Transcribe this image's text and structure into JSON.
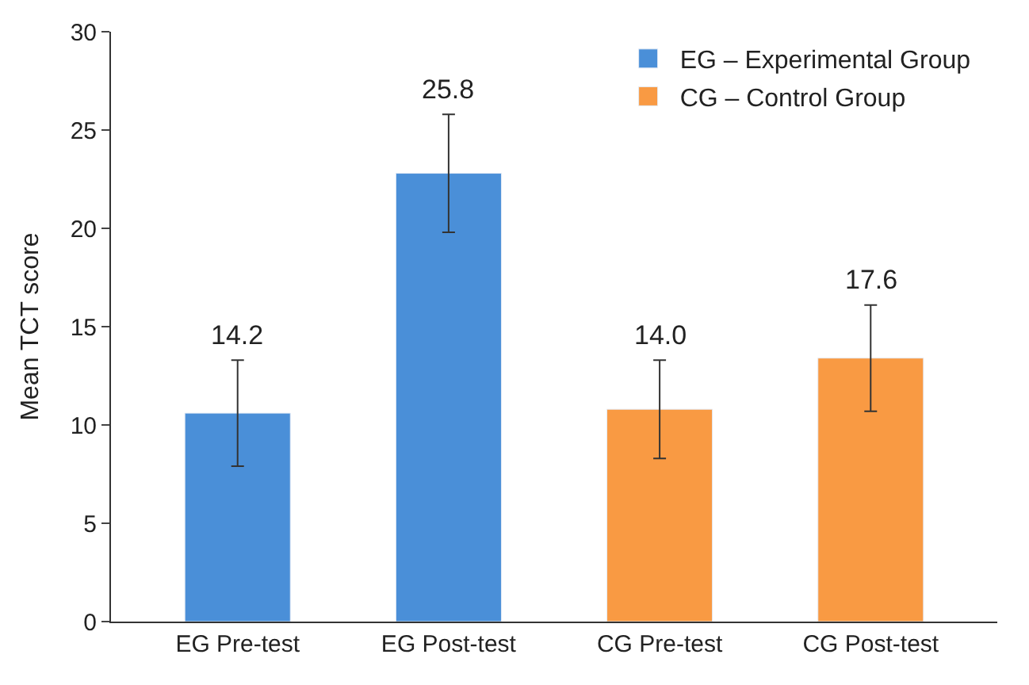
{
  "chart_data": {
    "type": "bar",
    "ylabel": "Mean TCT score",
    "categories": [
      "EG Pre-test",
      "EG Post-test",
      "CG Pre-test",
      "CG Post-test"
    ],
    "series": [
      {
        "name": "EG – Experimental Group",
        "color": "#4a8fd8",
        "values": [
          10.6,
          22.8,
          null,
          null
        ],
        "errors": [
          2.7,
          3.0,
          null,
          null
        ]
      },
      {
        "name": "CG – Control Group",
        "color": "#f99a43",
        "values": [
          null,
          null,
          10.8,
          13.4
        ],
        "errors": [
          null,
          null,
          2.5,
          2.7
        ]
      }
    ],
    "annotations": [
      {
        "text": "14.2",
        "x": "EG Pre-test",
        "y": 13.3
      },
      {
        "text": "25.8",
        "x": "EG Post-test",
        "y": 25.8
      },
      {
        "text": "14.0",
        "x": "CG Pre-test",
        "y": 13.3
      },
      {
        "text": "17.6",
        "x": "CG Post-test",
        "y": 16.1
      }
    ],
    "ylim": [
      0,
      30
    ],
    "yticks": [
      0,
      5,
      10,
      15,
      20,
      25,
      30
    ],
    "grid": false,
    "legend": "top right"
  }
}
